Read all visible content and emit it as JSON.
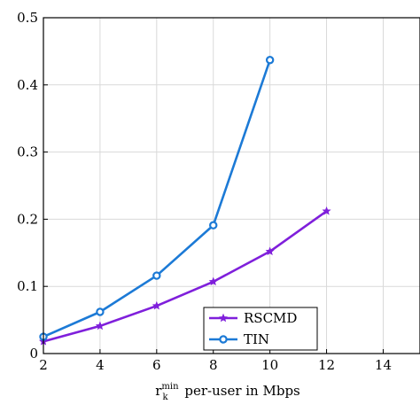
{
  "chart_data": {
    "type": "line",
    "title": "",
    "xlabel": {
      "base": "r",
      "superscript": "min",
      "subscript": "k",
      "rest": " per-user in Mbps"
    },
    "ylabel": "",
    "xlim": [
      2,
      15.3
    ],
    "ylim": [
      0,
      0.5
    ],
    "xticks": [
      2,
      4,
      6,
      8,
      10,
      12,
      14
    ],
    "yticks": [
      0,
      0.1,
      0.2,
      0.3,
      0.4,
      0.5
    ],
    "xtick_labels": [
      "2",
      "4",
      "6",
      "8",
      "10",
      "12",
      "14"
    ],
    "ytick_labels": [
      "0",
      "0.1",
      "0.2",
      "0.3",
      "0.4",
      "0.5"
    ],
    "grid": true,
    "legend_position": "bottom-center",
    "series": [
      {
        "name": "RSCMD",
        "color": "#7f1fdb",
        "marker": "star",
        "x": [
          2,
          4,
          6,
          8,
          10,
          12
        ],
        "y": [
          0.018,
          0.041,
          0.071,
          0.107,
          0.152,
          0.212
        ]
      },
      {
        "name": "TIN",
        "color": "#1c7ad6",
        "marker": "circle",
        "x": [
          2,
          4,
          6,
          8,
          10
        ],
        "y": [
          0.025,
          0.062,
          0.116,
          0.191,
          0.437
        ]
      }
    ]
  }
}
